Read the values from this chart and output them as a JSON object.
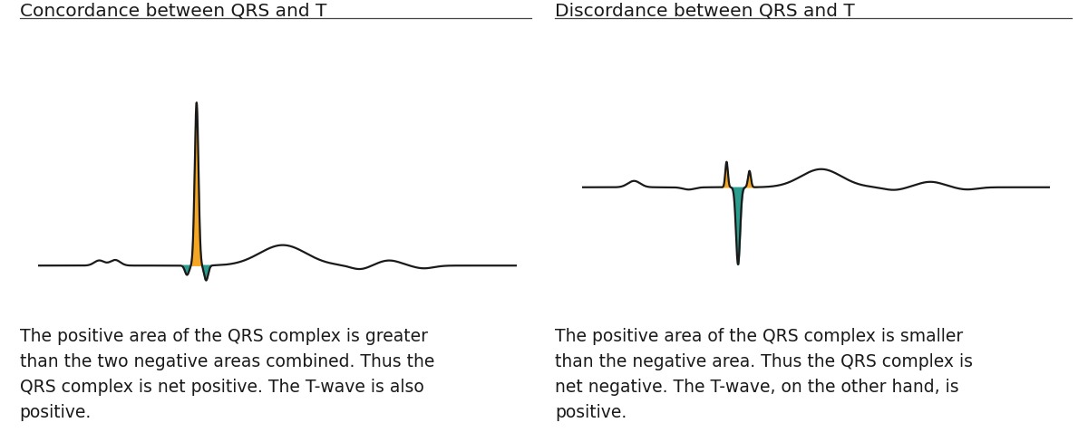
{
  "title_left": "Concordance between QRS and T",
  "title_right": "Discordance between QRS and T",
  "text_left": "The positive area of the QRS complex is greater\nthan the two negative areas combined. Thus the\nQRS complex is net positive. The T-wave is also\npositive.",
  "text_right": "The positive area of the QRS complex is smaller\nthan the negative area. Thus the QRS complex is\nnet negative. The T-wave, on the other hand, is\npositive.",
  "color_orange": "#F5A623",
  "color_teal": "#2A9D8F",
  "color_line": "#1a1a1a",
  "bg_color": "#ffffff",
  "title_fontsize": 14.5,
  "text_fontsize": 13.5
}
